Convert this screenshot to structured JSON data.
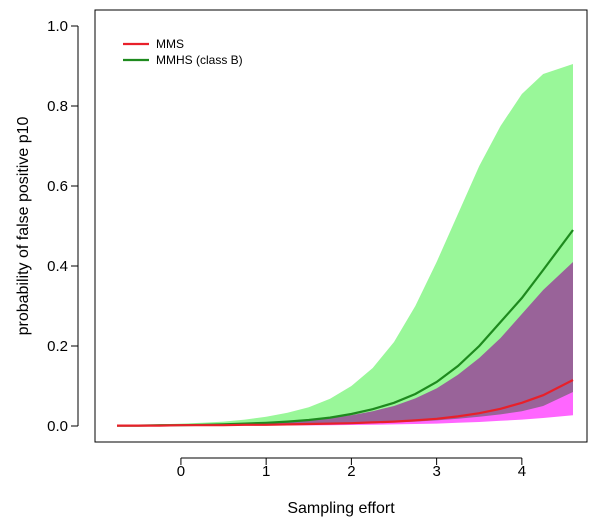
{
  "chart_data": {
    "type": "area",
    "title": "",
    "xlabel": "Sampling effort",
    "ylabel": "probability of false positive p10",
    "xlim": [
      -0.75,
      4.6
    ],
    "ylim": [
      0,
      1.0
    ],
    "x_ticks": [
      0,
      1,
      2,
      3,
      4
    ],
    "y_ticks": [
      0.0,
      0.2,
      0.4,
      0.6,
      0.8,
      1.0
    ],
    "x_tick_labels": [
      "0",
      "1",
      "2",
      "3",
      "4"
    ],
    "y_tick_labels": [
      "0.0",
      "0.2",
      "0.4",
      "0.6",
      "0.8",
      "1.0"
    ],
    "grid": false,
    "legend": {
      "position": "top-left"
    },
    "x": [
      -0.75,
      -0.5,
      -0.25,
      0.0,
      0.25,
      0.5,
      0.75,
      1.0,
      1.25,
      1.5,
      1.75,
      2.0,
      2.25,
      2.5,
      2.75,
      3.0,
      3.25,
      3.5,
      3.75,
      4.0,
      4.25,
      4.6
    ],
    "series": [
      {
        "name": "MMS",
        "color": "#e8202a",
        "band_color": "#ff55ff",
        "values": [
          0.001,
          0.001,
          0.001,
          0.002,
          0.002,
          0.002,
          0.003,
          0.003,
          0.004,
          0.005,
          0.006,
          0.007,
          0.009,
          0.011,
          0.014,
          0.018,
          0.024,
          0.032,
          0.043,
          0.058,
          0.077,
          0.115
        ],
        "lower": [
          0.0005,
          0.0005,
          0.0006,
          0.0007,
          0.0008,
          0.0009,
          0.001,
          0.0012,
          0.0014,
          0.0017,
          0.002,
          0.0025,
          0.003,
          0.004,
          0.005,
          0.006,
          0.008,
          0.01,
          0.013,
          0.016,
          0.02,
          0.027
        ],
        "upper": [
          0.002,
          0.002,
          0.003,
          0.004,
          0.005,
          0.006,
          0.007,
          0.009,
          0.011,
          0.015,
          0.02,
          0.027,
          0.037,
          0.05,
          0.069,
          0.094,
          0.128,
          0.17,
          0.22,
          0.28,
          0.34,
          0.41
        ]
      },
      {
        "name": "MMHS (class B)",
        "color": "#1e8a1e",
        "band_color": "#99f799",
        "values": [
          0.001,
          0.001,
          0.002,
          0.002,
          0.003,
          0.004,
          0.006,
          0.008,
          0.011,
          0.015,
          0.021,
          0.03,
          0.042,
          0.058,
          0.08,
          0.11,
          0.15,
          0.2,
          0.26,
          0.32,
          0.39,
          0.49
        ],
        "lower": [
          0.0005,
          0.0005,
          0.0006,
          0.0007,
          0.0008,
          0.001,
          0.0013,
          0.0017,
          0.0022,
          0.003,
          0.004,
          0.005,
          0.007,
          0.009,
          0.011,
          0.014,
          0.018,
          0.023,
          0.029,
          0.037,
          0.05,
          0.085
        ],
        "upper": [
          0.002,
          0.003,
          0.004,
          0.006,
          0.008,
          0.011,
          0.016,
          0.023,
          0.033,
          0.047,
          0.068,
          0.1,
          0.145,
          0.21,
          0.3,
          0.41,
          0.53,
          0.65,
          0.75,
          0.83,
          0.88,
          0.905
        ]
      }
    ]
  }
}
